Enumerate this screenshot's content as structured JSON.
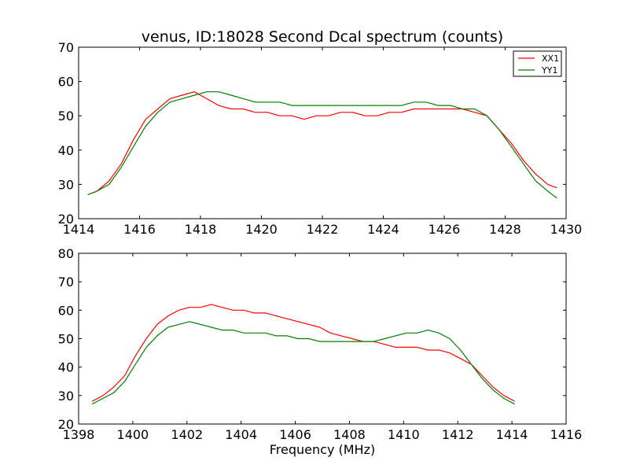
{
  "chart_data": [
    {
      "type": "line",
      "title": "venus, ID:18028 Second Dcal spectrum (counts)",
      "xlabel": "",
      "ylabel": "",
      "xlim": [
        1414,
        1430
      ],
      "ylim": [
        20,
        70
      ],
      "xticks": [
        1414,
        1416,
        1418,
        1420,
        1422,
        1424,
        1426,
        1428,
        1430
      ],
      "yticks": [
        20,
        30,
        40,
        50,
        60,
        70
      ],
      "grid": false,
      "legend": "top-right",
      "series": [
        {
          "name": "XX1",
          "color": "#ff0000",
          "x": [
            1414.3,
            1414.6,
            1415.0,
            1415.4,
            1415.8,
            1416.2,
            1416.6,
            1417.0,
            1417.4,
            1417.8,
            1418.2,
            1418.6,
            1419.0,
            1419.4,
            1419.8,
            1420.2,
            1420.6,
            1421.0,
            1421.4,
            1421.8,
            1422.2,
            1422.6,
            1423.0,
            1423.4,
            1423.8,
            1424.2,
            1424.6,
            1425.0,
            1425.4,
            1425.8,
            1426.2,
            1426.6,
            1427.0,
            1427.4,
            1427.8,
            1428.2,
            1428.6,
            1429.0,
            1429.4,
            1429.7
          ],
          "y": [
            27,
            28,
            31,
            36,
            43,
            49,
            52,
            55,
            56,
            57,
            55,
            53,
            52,
            52,
            51,
            51,
            50,
            50,
            49,
            50,
            50,
            51,
            51,
            50,
            50,
            51,
            51,
            52,
            52,
            52,
            52,
            52,
            51,
            50,
            46,
            42,
            37,
            33,
            30,
            29
          ]
        },
        {
          "name": "YY1",
          "color": "#008000",
          "x": [
            1414.3,
            1414.6,
            1415.0,
            1415.4,
            1415.8,
            1416.2,
            1416.6,
            1417.0,
            1417.4,
            1417.8,
            1418.2,
            1418.6,
            1419.0,
            1419.4,
            1419.8,
            1420.2,
            1420.6,
            1421.0,
            1421.4,
            1421.8,
            1422.2,
            1422.6,
            1423.0,
            1423.4,
            1423.8,
            1424.2,
            1424.6,
            1425.0,
            1425.4,
            1425.8,
            1426.2,
            1426.6,
            1427.0,
            1427.4,
            1427.8,
            1428.2,
            1428.6,
            1429.0,
            1429.4,
            1429.7
          ],
          "y": [
            27,
            28,
            30,
            35,
            41,
            47,
            51,
            54,
            55,
            56,
            57,
            57,
            56,
            55,
            54,
            54,
            54,
            53,
            53,
            53,
            53,
            53,
            53,
            53,
            53,
            53,
            53,
            54,
            54,
            53,
            53,
            52,
            52,
            50,
            46,
            41,
            36,
            31,
            28,
            26
          ]
        }
      ]
    },
    {
      "type": "line",
      "title": "",
      "xlabel": "Frequency (MHz)",
      "ylabel": "",
      "xlim": [
        1398,
        1416
      ],
      "ylim": [
        20,
        80
      ],
      "xticks": [
        1398,
        1400,
        1402,
        1404,
        1406,
        1408,
        1410,
        1412,
        1414,
        1416
      ],
      "yticks": [
        20,
        30,
        40,
        50,
        60,
        70,
        80
      ],
      "grid": false,
      "series": [
        {
          "name": "XX1",
          "color": "#ff0000",
          "x": [
            1398.5,
            1398.9,
            1399.3,
            1399.7,
            1400.1,
            1400.5,
            1400.9,
            1401.3,
            1401.7,
            1402.1,
            1402.5,
            1402.9,
            1403.3,
            1403.7,
            1404.1,
            1404.5,
            1404.9,
            1405.3,
            1405.7,
            1406.1,
            1406.5,
            1406.9,
            1407.3,
            1407.7,
            1408.1,
            1408.5,
            1408.9,
            1409.3,
            1409.7,
            1410.1,
            1410.5,
            1410.9,
            1411.3,
            1411.7,
            1412.1,
            1412.5,
            1412.9,
            1413.3,
            1413.7,
            1414.1
          ],
          "y": [
            28,
            30,
            33,
            37,
            44,
            50,
            55,
            58,
            60,
            61,
            61,
            62,
            61,
            60,
            60,
            59,
            59,
            58,
            57,
            56,
            55,
            54,
            52,
            51,
            50,
            49,
            49,
            48,
            47,
            47,
            47,
            46,
            46,
            45,
            43,
            41,
            37,
            33,
            30,
            28
          ]
        },
        {
          "name": "YY1",
          "color": "#008000",
          "x": [
            1398.5,
            1398.9,
            1399.3,
            1399.7,
            1400.1,
            1400.5,
            1400.9,
            1401.3,
            1401.7,
            1402.1,
            1402.5,
            1402.9,
            1403.3,
            1403.7,
            1404.1,
            1404.5,
            1404.9,
            1405.3,
            1405.7,
            1406.1,
            1406.5,
            1406.9,
            1407.3,
            1407.7,
            1408.1,
            1408.5,
            1408.9,
            1409.3,
            1409.7,
            1410.1,
            1410.5,
            1410.9,
            1411.3,
            1411.7,
            1412.1,
            1412.5,
            1412.9,
            1413.3,
            1413.7,
            1414.1
          ],
          "y": [
            27,
            29,
            31,
            35,
            41,
            47,
            51,
            54,
            55,
            56,
            55,
            54,
            53,
            53,
            52,
            52,
            52,
            51,
            51,
            50,
            50,
            49,
            49,
            49,
            49,
            49,
            49,
            50,
            51,
            52,
            52,
            53,
            52,
            50,
            46,
            41,
            36,
            32,
            29,
            27
          ]
        }
      ]
    }
  ]
}
